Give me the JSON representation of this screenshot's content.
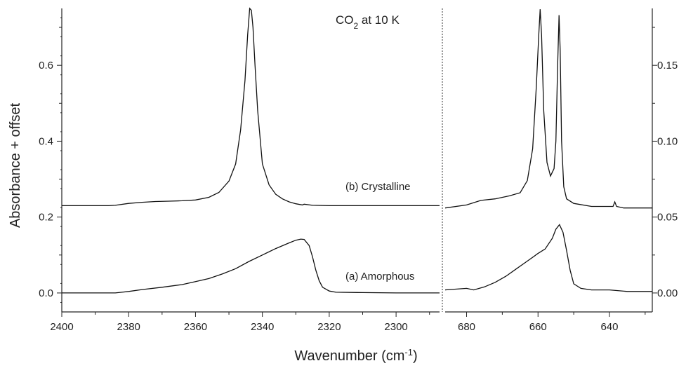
{
  "chart_data": {
    "type": "line",
    "title_main": "CO",
    "title_sub": "2",
    "title_rest": " at 10 K",
    "xlabel_main": "Wavenumber (cm",
    "xlabel_sup": "-1",
    "xlabel_close": ")",
    "ylabel": "Absorbance + offset",
    "left_panel": {
      "xlim": [
        2400,
        2287
      ],
      "ylim": [
        -0.05,
        0.75
      ],
      "x_ticks": [
        {
          "value": 2400,
          "label": "2400"
        },
        {
          "value": 2380,
          "label": "2380"
        },
        {
          "value": 2360,
          "label": "2360"
        },
        {
          "value": 2340,
          "label": "2340"
        },
        {
          "value": 2320,
          "label": "2320"
        },
        {
          "value": 2300,
          "label": "2300"
        }
      ],
      "y_ticks": [
        {
          "value": 0.0,
          "label": "0.0"
        },
        {
          "value": 0.2,
          "label": "0.2"
        },
        {
          "value": 0.4,
          "label": "0.4"
        },
        {
          "value": 0.6,
          "label": "0.6"
        }
      ]
    },
    "right_panel": {
      "xlim": [
        686,
        628
      ],
      "ylim": [
        -0.0125,
        0.1875
      ],
      "x_ticks": [
        {
          "value": 680,
          "label": "680"
        },
        {
          "value": 660,
          "label": "660"
        },
        {
          "value": 640,
          "label": "640"
        }
      ],
      "y_ticks": [
        {
          "value": 0.0,
          "label": "0.00"
        },
        {
          "value": 0.05,
          "label": "0.05"
        },
        {
          "value": 0.1,
          "label": "0.10"
        },
        {
          "value": 0.15,
          "label": "0.15"
        }
      ]
    },
    "series": [
      {
        "name": "(b) Crystalline",
        "left_x": [
          2400,
          2390,
          2386,
          2384,
          2380,
          2376,
          2372,
          2368,
          2364,
          2360,
          2356,
          2353,
          2350,
          2348,
          2346.5,
          2345.2,
          2344.4,
          2343.8,
          2343.3,
          2342.8,
          2342.2,
          2341.4,
          2340,
          2338,
          2336,
          2334,
          2332,
          2330,
          2328,
          2327.5,
          2325,
          2320,
          2310,
          2300,
          2287
        ],
        "left_y": [
          0.23,
          0.23,
          0.23,
          0.231,
          0.236,
          0.239,
          0.241,
          0.242,
          0.243,
          0.245,
          0.252,
          0.265,
          0.295,
          0.34,
          0.43,
          0.56,
          0.68,
          0.75,
          0.745,
          0.7,
          0.6,
          0.48,
          0.34,
          0.285,
          0.26,
          0.248,
          0.24,
          0.235,
          0.232,
          0.234,
          0.231,
          0.23,
          0.23,
          0.23,
          0.23
        ],
        "right_x": [
          686,
          680,
          676,
          672,
          668,
          665,
          663,
          661.5,
          660.5,
          659.8,
          659.4,
          659,
          658.4,
          657.5,
          656.5,
          655.5,
          655,
          654.5,
          654.1,
          653.8,
          653.4,
          652.8,
          652,
          650,
          645,
          642,
          639,
          638.5,
          638,
          636,
          630,
          628
        ],
        "right_y": [
          0.056,
          0.058,
          0.061,
          0.062,
          0.064,
          0.066,
          0.074,
          0.095,
          0.135,
          0.17,
          0.187,
          0.17,
          0.12,
          0.086,
          0.077,
          0.082,
          0.1,
          0.15,
          0.183,
          0.16,
          0.1,
          0.07,
          0.062,
          0.059,
          0.057,
          0.057,
          0.057,
          0.06,
          0.057,
          0.056,
          0.056,
          0.056
        ]
      },
      {
        "name": "(a) Amorphous",
        "left_x": [
          2400,
          2390,
          2384,
          2382,
          2380,
          2376,
          2370,
          2364,
          2360,
          2356,
          2352,
          2348,
          2344,
          2340,
          2336,
          2332,
          2330,
          2328.5,
          2327.5,
          2326,
          2325,
          2324,
          2323,
          2322,
          2320,
          2318,
          2310,
          2300,
          2287
        ],
        "left_y": [
          0.0,
          0.0,
          0.0,
          0.002,
          0.004,
          0.009,
          0.015,
          0.022,
          0.03,
          0.038,
          0.05,
          0.064,
          0.083,
          0.1,
          0.117,
          0.132,
          0.139,
          0.142,
          0.141,
          0.125,
          0.095,
          0.06,
          0.032,
          0.015,
          0.005,
          0.002,
          0.001,
          0.0,
          0.0
        ],
        "right_x": [
          686,
          680,
          678,
          675,
          672,
          669,
          666,
          663,
          660,
          658,
          656,
          655,
          654,
          653,
          652,
          651,
          650,
          648,
          645,
          640,
          635,
          630,
          628
        ],
        "right_y": [
          0.002,
          0.003,
          0.002,
          0.004,
          0.007,
          0.011,
          0.016,
          0.021,
          0.026,
          0.029,
          0.036,
          0.042,
          0.045,
          0.04,
          0.028,
          0.015,
          0.006,
          0.003,
          0.002,
          0.002,
          0.001,
          0.001,
          0.001
        ]
      }
    ]
  }
}
